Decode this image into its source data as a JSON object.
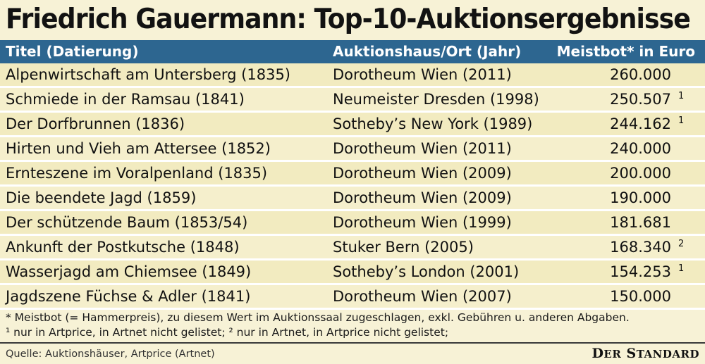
{
  "title": "Friedrich Gauermann: Top-10-Auktionsergebnisse",
  "chart_data": {
    "type": "table",
    "columns": [
      "Titel (Datierung)",
      "Auktionshaus/Ort (Jahr)",
      "Meistbot* in Euro"
    ],
    "rows": [
      {
        "title": "Alpenwirtschaft am Untersberg (1835)",
        "house": "Dorotheum Wien (2011)",
        "price": "260.000",
        "note": ""
      },
      {
        "title": "Schmiede in der Ramsau (1841)",
        "house": "Neumeister Dresden (1998)",
        "price": "250.507",
        "note": "1"
      },
      {
        "title": "Der Dorfbrunnen (1836)",
        "house": "Sotheby’s New York (1989)",
        "price": "244.162",
        "note": "1"
      },
      {
        "title": "Hirten und Vieh am Attersee (1852)",
        "house": "Dorotheum Wien (2011)",
        "price": "240.000",
        "note": ""
      },
      {
        "title": "Ernteszene im Voralpenland (1835)",
        "house": "Dorotheum Wien (2009)",
        "price": "200.000",
        "note": ""
      },
      {
        "title": "Die beendete Jagd (1859)",
        "house": "Dorotheum Wien (2009)",
        "price": "190.000",
        "note": ""
      },
      {
        "title": "Der schützende Baum (1853/54)",
        "house": "Dorotheum Wien (1999)",
        "price": "181.681",
        "note": ""
      },
      {
        "title": "Ankunft der Postkutsche (1848)",
        "house": "Stuker Bern (2005)",
        "price": "168.340",
        "note": "2"
      },
      {
        "title": "Wasserjagd am Chiemsee (1849)",
        "house": "Sotheby’s London (2001)",
        "price": "154.253",
        "note": "1"
      },
      {
        "title": "Jagdszene Füchse & Adler (1841)",
        "house": "Dorotheum Wien (2007)",
        "price": "150.000",
        "note": ""
      }
    ]
  },
  "footnotes": [
    "* Meistbot (= Hammerpreis), zu diesem Wert im Auktionssaal zugeschlagen, exkl. Gebühren u. anderen Abgaben.",
    "¹ nur in Artprice, in Artnet nicht gelistet; ² nur in Artnet, in Artprice nicht gelistet;"
  ],
  "source": "Quelle: Auktionshäuser, Artprice (Artnet)",
  "brand": {
    "first": "D",
    "first_rest": "ER",
    "second": "S",
    "second_rest": "TANDARD"
  },
  "colors": {
    "header_bg": "#2d6690",
    "background": "#f7f2d6",
    "row_bg": "#f2ebc0"
  }
}
